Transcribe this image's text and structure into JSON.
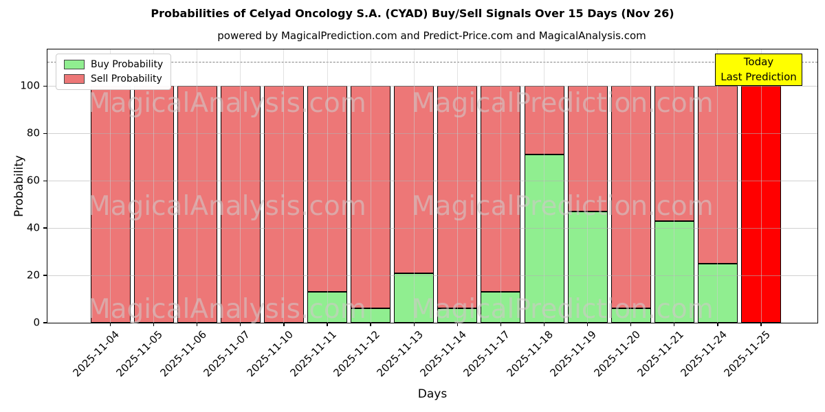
{
  "title": "Probabilities of Celyad Oncology S.A. (CYAD) Buy/Sell Signals Over 15 Days (Nov 26)",
  "subtitle": "powered by MagicalPrediction.com and Predict-Price.com and MagicalAnalysis.com",
  "watermarks": {
    "left": "MagicalAnalysis.com",
    "right": "MagicalPrediction.com"
  },
  "annotation": {
    "line1": "Today",
    "line2": "Last Prediction",
    "bg_color": "#ffff00"
  },
  "chart_data": {
    "type": "bar",
    "stacked": true,
    "title": "Probabilities of Celyad Oncology S.A. (CYAD) Buy/Sell Signals Over 15 Days (Nov 26)",
    "xlabel": "Days",
    "ylabel": "Probability",
    "categories": [
      "2025-11-04",
      "2025-11-05",
      "2025-11-06",
      "2025-11-07",
      "2025-11-10",
      "2025-11-11",
      "2025-11-12",
      "2025-11-13",
      "2025-11-14",
      "2025-11-17",
      "2025-11-18",
      "2025-11-19",
      "2025-11-20",
      "2025-11-21",
      "2025-11-24",
      "2025-11-25"
    ],
    "series": [
      {
        "name": "Buy Probability",
        "color": "#90ee90",
        "values": [
          0,
          0,
          0,
          0,
          0,
          13,
          6,
          21,
          6,
          13,
          71,
          47,
          6,
          43,
          25,
          0
        ]
      },
      {
        "name": "Sell Probability",
        "color": "#ed7777",
        "values": [
          100,
          100,
          100,
          100,
          100,
          87,
          94,
          79,
          94,
          87,
          29,
          53,
          94,
          57,
          75,
          100
        ]
      }
    ],
    "today_bar": {
      "index": 15,
      "color": "#ff0000",
      "note": "Today / Last Prediction bar drawn in pure red"
    },
    "yticks": [
      0,
      20,
      40,
      60,
      80,
      100
    ],
    "ylim": [
      0,
      115.5
    ],
    "dashed_line_y": 110,
    "grid": true,
    "legend_position": "top-left"
  }
}
